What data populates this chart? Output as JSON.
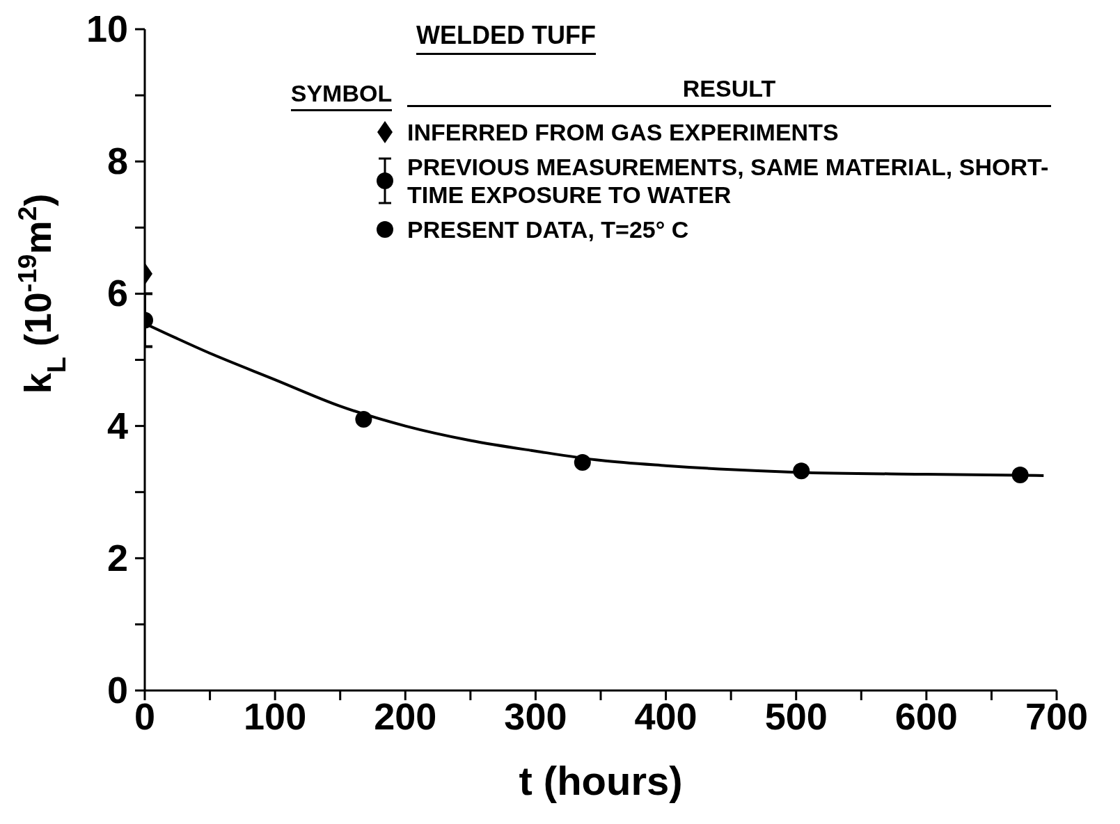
{
  "chart_data": {
    "type": "scatter",
    "title": "WELDED TUFF",
    "xlabel": "t (hours)",
    "ylabel": "k$_{L}$ (10$^{-19}$m$^{2}$)",
    "annotations": [
      "SYMBOL",
      "RESULT"
    ],
    "xlim": [
      0,
      700
    ],
    "xticks": [
      0,
      {
        "value": 50,
        "label": null
      },
      100,
      {
        "value": 150,
        "label": null
      },
      200,
      {
        "value": 250,
        "label": null
      },
      300,
      {
        "value": 350,
        "label": null
      },
      400,
      {
        "value": 450,
        "label": null
      },
      500,
      {
        "value": 550,
        "label": null
      },
      600,
      {
        "value": 650,
        "label": null
      },
      700
    ],
    "ylim": [
      0,
      10
    ],
    "yticks": [
      0,
      {
        "value": 1,
        "label": null
      },
      2,
      {
        "value": 3,
        "label": null
      },
      4,
      {
        "value": 5,
        "label": null
      },
      6,
      {
        "value": 7,
        "label": null
      },
      8,
      {
        "value": 9,
        "label": null
      },
      10
    ],
    "grid": false,
    "legend": "top right",
    "series": [
      {
        "name": "INFERRED FROM GAS EXPERIMENTS",
        "marker": "diamond",
        "color": "#000000",
        "x": [
          0
        ],
        "values": [
          6.3
        ]
      },
      {
        "name": "PREVIOUS MEASUREMENTS, SAME MATERIAL, SHORT-TIME EXPOSURE TO WATER",
        "marker": "circle",
        "color": "#000000",
        "x": [
          0
        ],
        "values": [
          5.6
        ],
        "errors": [
          0.4
        ]
      },
      {
        "name": "PRESENT DATA, T=25° C",
        "marker": "circle",
        "color": "#000000",
        "x": [
          168,
          336,
          504,
          672
        ],
        "values": [
          4.1,
          3.45,
          3.32,
          3.26
        ]
      },
      {
        "type": "line",
        "color": "#000000",
        "line_style": "solid",
        "marker": "none",
        "x": [
          0,
          50,
          100,
          150,
          200,
          250,
          300,
          350,
          400,
          450,
          500,
          600,
          690
        ],
        "values": [
          5.55,
          5.1,
          4.7,
          4.3,
          4.0,
          3.78,
          3.62,
          3.48,
          3.4,
          3.34,
          3.3,
          3.27,
          3.25
        ]
      }
    ]
  }
}
